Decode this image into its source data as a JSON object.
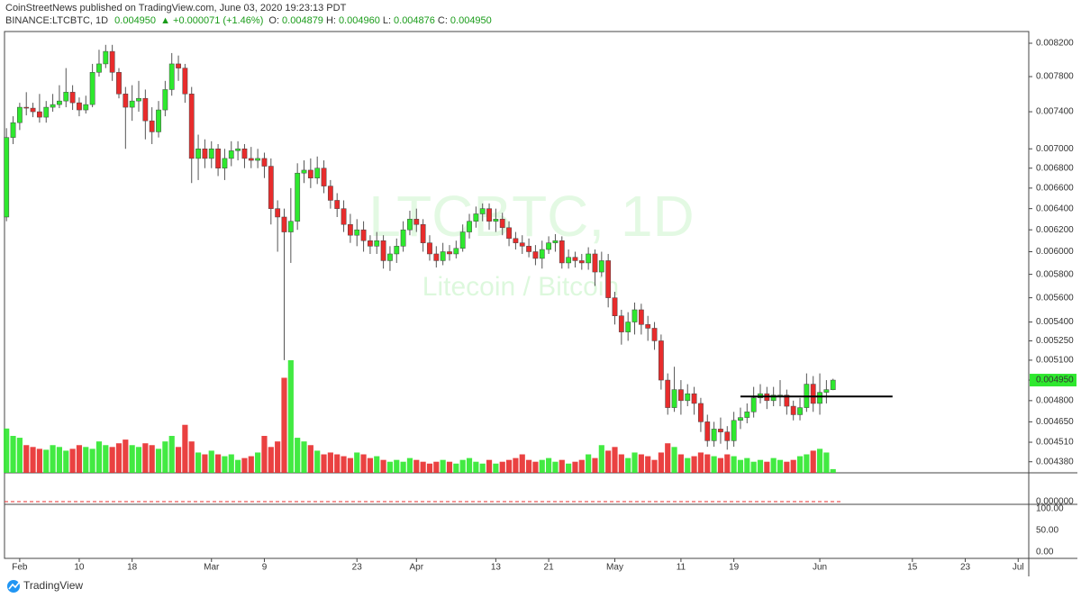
{
  "header": {
    "byline": "CoinStreetNews published on TradingView.com, June 03, 2020 19:23:13 PDT",
    "symbol": "BINANCE:LTCBTC, 1D",
    "last": "0.004950",
    "change": "▲ +0.000071 (+1.46%)",
    "ohlc": [
      {
        "label": "O:",
        "value": "0.004879"
      },
      {
        "label": "H:",
        "value": "0.004960"
      },
      {
        "label": "L:",
        "value": "0.004876"
      },
      {
        "label": "C:",
        "value": "0.004950"
      }
    ]
  },
  "watermark": {
    "symbol": "LTCBTC, 1D",
    "description": "Litecoin / Bitcoin"
  },
  "chart_data": {
    "type": "candlestick",
    "log_scale": true,
    "grid": false,
    "up_color": "#2ee82e",
    "down_color": "#e82c2c",
    "open": [
      0.00632,
      0.00712,
      0.00728,
      0.00745,
      0.00744,
      0.0074,
      0.00734,
      0.00745,
      0.00748,
      0.00752,
      0.00762,
      0.0075,
      0.00742,
      0.00748,
      0.00785,
      0.00795,
      0.0081,
      0.00785,
      0.0076,
      0.00745,
      0.00752,
      0.00755,
      0.0073,
      0.00718,
      0.00742,
      0.00765,
      0.00795,
      0.0079,
      0.0076,
      0.0069,
      0.007,
      0.0069,
      0.007,
      0.0068,
      0.0069,
      0.00698,
      0.007,
      0.0069,
      0.00688,
      0.0069,
      0.00682,
      0.0064,
      0.00632,
      0.00618,
      0.00628,
      0.00675,
      0.00678,
      0.0067,
      0.0068,
      0.00662,
      0.00648,
      0.0064,
      0.00625,
      0.00615,
      0.0062,
      0.0061,
      0.00605,
      0.0061,
      0.00592,
      0.00598,
      0.00605,
      0.0062,
      0.0063,
      0.00625,
      0.00608,
      0.00598,
      0.00592,
      0.006,
      0.00598,
      0.00603,
      0.00618,
      0.00628,
      0.00635,
      0.0064,
      0.00628,
      0.0063,
      0.00622,
      0.00612,
      0.00608,
      0.00605,
      0.006,
      0.00594,
      0.00602,
      0.00608,
      0.0061,
      0.0059,
      0.00595,
      0.00592,
      0.0059,
      0.00598,
      0.00582,
      0.00592,
      0.0056,
      0.00545,
      0.00532,
      0.0054,
      0.0055,
      0.00538,
      0.00535,
      0.00525,
      0.00495,
      0.00475,
      0.00488,
      0.0048,
      0.00485,
      0.00478,
      0.00465,
      0.00452,
      0.0046,
      0.00458,
      0.00452,
      0.00466,
      0.00468,
      0.00472,
      0.00482,
      0.00485,
      0.0048,
      0.00484,
      0.00484,
      0.00476,
      0.0047,
      0.00475,
      0.00492,
      0.00478,
      0.00486,
      0.004879
    ],
    "high": [
      0.00722,
      0.00735,
      0.0075,
      0.00762,
      0.0075,
      0.0076,
      0.00752,
      0.0076,
      0.0077,
      0.0079,
      0.0077,
      0.00756,
      0.00758,
      0.00795,
      0.00812,
      0.00818,
      0.00818,
      0.0079,
      0.00768,
      0.0077,
      0.00775,
      0.00765,
      0.00745,
      0.00752,
      0.00775,
      0.00808,
      0.00805,
      0.00795,
      0.00768,
      0.00715,
      0.0071,
      0.00708,
      0.00705,
      0.007,
      0.00708,
      0.00708,
      0.00705,
      0.00702,
      0.007,
      0.00696,
      0.0069,
      0.00648,
      0.0064,
      0.0066,
      0.00685,
      0.00688,
      0.0069,
      0.00692,
      0.00688,
      0.00668,
      0.00655,
      0.00648,
      0.00635,
      0.0063,
      0.00628,
      0.00615,
      0.00618,
      0.00615,
      0.00605,
      0.00612,
      0.00628,
      0.00638,
      0.0064,
      0.0063,
      0.00615,
      0.00605,
      0.00608,
      0.00606,
      0.0061,
      0.00625,
      0.00635,
      0.00642,
      0.00645,
      0.00645,
      0.0064,
      0.00636,
      0.00628,
      0.00618,
      0.00615,
      0.00612,
      0.00606,
      0.0061,
      0.00614,
      0.00616,
      0.00614,
      0.00602,
      0.006,
      0.00598,
      0.00604,
      0.00602,
      0.006,
      0.00598,
      0.00565,
      0.0055,
      0.00548,
      0.00556,
      0.00555,
      0.00545,
      0.0054,
      0.0053,
      0.005,
      0.00505,
      0.00495,
      0.00492,
      0.0049,
      0.00482,
      0.0047,
      0.00465,
      0.00468,
      0.00462,
      0.00472,
      0.00475,
      0.00478,
      0.0049,
      0.00492,
      0.0049,
      0.0049,
      0.00495,
      0.00488,
      0.0048,
      0.00482,
      0.005,
      0.00498,
      0.005,
      0.00495,
      0.00496
    ],
    "low": [
      0.00628,
      0.00705,
      0.0072,
      0.00736,
      0.00734,
      0.00728,
      0.00728,
      0.0074,
      0.00744,
      0.00745,
      0.00742,
      0.00735,
      0.00738,
      0.00745,
      0.0078,
      0.0079,
      0.00775,
      0.00755,
      0.007,
      0.0073,
      0.0074,
      0.0071,
      0.00705,
      0.00712,
      0.00735,
      0.00758,
      0.00775,
      0.0075,
      0.00665,
      0.00668,
      0.0068,
      0.0068,
      0.00672,
      0.00668,
      0.00682,
      0.00688,
      0.0068,
      0.0068,
      0.0068,
      0.0067,
      0.00625,
      0.006,
      0.0051,
      0.0059,
      0.0062,
      0.00665,
      0.0066,
      0.00664,
      0.00655,
      0.0064,
      0.00632,
      0.00618,
      0.00608,
      0.00605,
      0.006,
      0.00598,
      0.00598,
      0.00585,
      0.00583,
      0.0059,
      0.006,
      0.00615,
      0.00618,
      0.006,
      0.00592,
      0.00586,
      0.00588,
      0.00592,
      0.00594,
      0.006,
      0.00612,
      0.00622,
      0.00628,
      0.0062,
      0.00618,
      0.00615,
      0.00605,
      0.00602,
      0.00598,
      0.00595,
      0.00588,
      0.00585,
      0.00598,
      0.006,
      0.00585,
      0.00585,
      0.00586,
      0.00584,
      0.00584,
      0.0057,
      0.00578,
      0.00552,
      0.00538,
      0.00522,
      0.00525,
      0.0053,
      0.0053,
      0.00525,
      0.00518,
      0.00488,
      0.0047,
      0.00472,
      0.0047,
      0.00476,
      0.0047,
      0.00458,
      0.00448,
      0.00448,
      0.0045,
      0.00446,
      0.00448,
      0.0046,
      0.00464,
      0.00468,
      0.00478,
      0.00474,
      0.00476,
      0.00476,
      0.0047,
      0.00466,
      0.00466,
      0.00472,
      0.00472,
      0.0047,
      0.00478,
      0.004876
    ],
    "close": [
      0.00712,
      0.00728,
      0.00745,
      0.00744,
      0.0074,
      0.00734,
      0.00745,
      0.00748,
      0.00752,
      0.00762,
      0.0075,
      0.00742,
      0.00748,
      0.00785,
      0.00795,
      0.0081,
      0.00785,
      0.0076,
      0.00745,
      0.00752,
      0.00755,
      0.0073,
      0.00718,
      0.00742,
      0.00765,
      0.00795,
      0.0079,
      0.0076,
      0.0069,
      0.007,
      0.0069,
      0.007,
      0.0068,
      0.0069,
      0.00698,
      0.007,
      0.0069,
      0.00688,
      0.0069,
      0.00682,
      0.0064,
      0.00632,
      0.00618,
      0.00628,
      0.00675,
      0.00678,
      0.0067,
      0.0068,
      0.00662,
      0.00648,
      0.0064,
      0.00625,
      0.00615,
      0.0062,
      0.0061,
      0.00605,
      0.0061,
      0.00592,
      0.00598,
      0.00605,
      0.0062,
      0.0063,
      0.00625,
      0.00608,
      0.00598,
      0.00592,
      0.006,
      0.00598,
      0.00603,
      0.00618,
      0.00628,
      0.00635,
      0.0064,
      0.00628,
      0.0063,
      0.00622,
      0.00612,
      0.00608,
      0.00605,
      0.006,
      0.00594,
      0.00602,
      0.00608,
      0.0061,
      0.0059,
      0.00595,
      0.00592,
      0.0059,
      0.00598,
      0.00582,
      0.00592,
      0.0056,
      0.00545,
      0.00532,
      0.0054,
      0.0055,
      0.00538,
      0.00535,
      0.00525,
      0.00495,
      0.00475,
      0.00488,
      0.0048,
      0.00485,
      0.00478,
      0.00465,
      0.00452,
      0.0046,
      0.00458,
      0.00452,
      0.00466,
      0.00468,
      0.00472,
      0.00482,
      0.00485,
      0.0048,
      0.00484,
      0.00484,
      0.00476,
      0.0047,
      0.00475,
      0.00492,
      0.00478,
      0.00486,
      0.00488,
      0.00495
    ],
    "volume": [
      48,
      40,
      38,
      30,
      28,
      26,
      25,
      30,
      28,
      24,
      26,
      30,
      28,
      26,
      34,
      30,
      28,
      32,
      36,
      30,
      28,
      32,
      30,
      26,
      34,
      40,
      28,
      52,
      34,
      22,
      20,
      24,
      20,
      18,
      20,
      14,
      16,
      18,
      22,
      40,
      28,
      34,
      103,
      122,
      38,
      34,
      30,
      24,
      20,
      22,
      20,
      18,
      16,
      22,
      20,
      16,
      18,
      14,
      12,
      14,
      12,
      16,
      14,
      12,
      10,
      12,
      14,
      12,
      10,
      14,
      16,
      12,
      10,
      14,
      10,
      12,
      14,
      16,
      20,
      14,
      12,
      14,
      16,
      12,
      14,
      10,
      12,
      14,
      20,
      16,
      30,
      24,
      28,
      20,
      16,
      22,
      20,
      18,
      14,
      22,
      32,
      28,
      20,
      16,
      18,
      22,
      20,
      18,
      16,
      20,
      18,
      14,
      16,
      12,
      14,
      12,
      16,
      14,
      12,
      14,
      18,
      20,
      24,
      26,
      22,
      4
    ],
    "xlim": [
      -0.3,
      154.6
    ],
    "xticks": [
      {
        "value": 2,
        "label": "Feb"
      },
      {
        "value": 11,
        "label": "10"
      },
      {
        "value": 19,
        "label": "18"
      },
      {
        "value": 31,
        "label": "Mar"
      },
      {
        "value": 39,
        "label": "9"
      },
      {
        "value": 53,
        "label": "23"
      },
      {
        "value": 62,
        "label": "Apr"
      },
      {
        "value": 74,
        "label": "13"
      },
      {
        "value": 82,
        "label": "21"
      },
      {
        "value": 92,
        "label": "May"
      },
      {
        "value": 102,
        "label": "11"
      },
      {
        "value": 110,
        "label": "19"
      },
      {
        "value": 123,
        "label": "Jun"
      },
      {
        "value": 137,
        "label": "15"
      },
      {
        "value": 145,
        "label": "23"
      },
      {
        "value": 153,
        "label": "Jul"
      }
    ],
    "ylim": [
      0.004308,
      0.008345
    ],
    "yticks": [
      {
        "value": 0.0082,
        "label": "0.008200"
      },
      {
        "value": 0.0078,
        "label": "0.007800"
      },
      {
        "value": 0.0074,
        "label": "0.007400"
      },
      {
        "value": 0.007,
        "label": "0.007000"
      },
      {
        "value": 0.0068,
        "label": "0.006800"
      },
      {
        "value": 0.0066,
        "label": "0.006600"
      },
      {
        "value": 0.0064,
        "label": "0.006400"
      },
      {
        "value": 0.0062,
        "label": "0.006200"
      },
      {
        "value": 0.006,
        "label": "0.006000"
      },
      {
        "value": 0.0058,
        "label": "0.005800"
      },
      {
        "value": 0.0056,
        "label": "0.005600"
      },
      {
        "value": 0.0054,
        "label": "0.005400"
      },
      {
        "value": 0.00525,
        "label": "0.005250"
      },
      {
        "value": 0.0051,
        "label": "0.005100"
      },
      {
        "value": 0.00495,
        "label": "0.004950"
      },
      {
        "value": 0.0048,
        "label": "0.004800"
      },
      {
        "value": 0.00465,
        "label": "0.004650"
      },
      {
        "value": 0.00451,
        "label": "0.004510"
      },
      {
        "value": 0.00438,
        "label": "0.004380"
      }
    ],
    "level_line": {
      "value": 0.00483,
      "x": [
        111,
        134
      ]
    }
  },
  "lower_panes": [
    {
      "labels": [
        "0.000000"
      ]
    },
    {
      "labels": [
        "100.00",
        "50.00",
        "0.00"
      ]
    }
  ],
  "footer": {
    "brand": "TradingView"
  }
}
